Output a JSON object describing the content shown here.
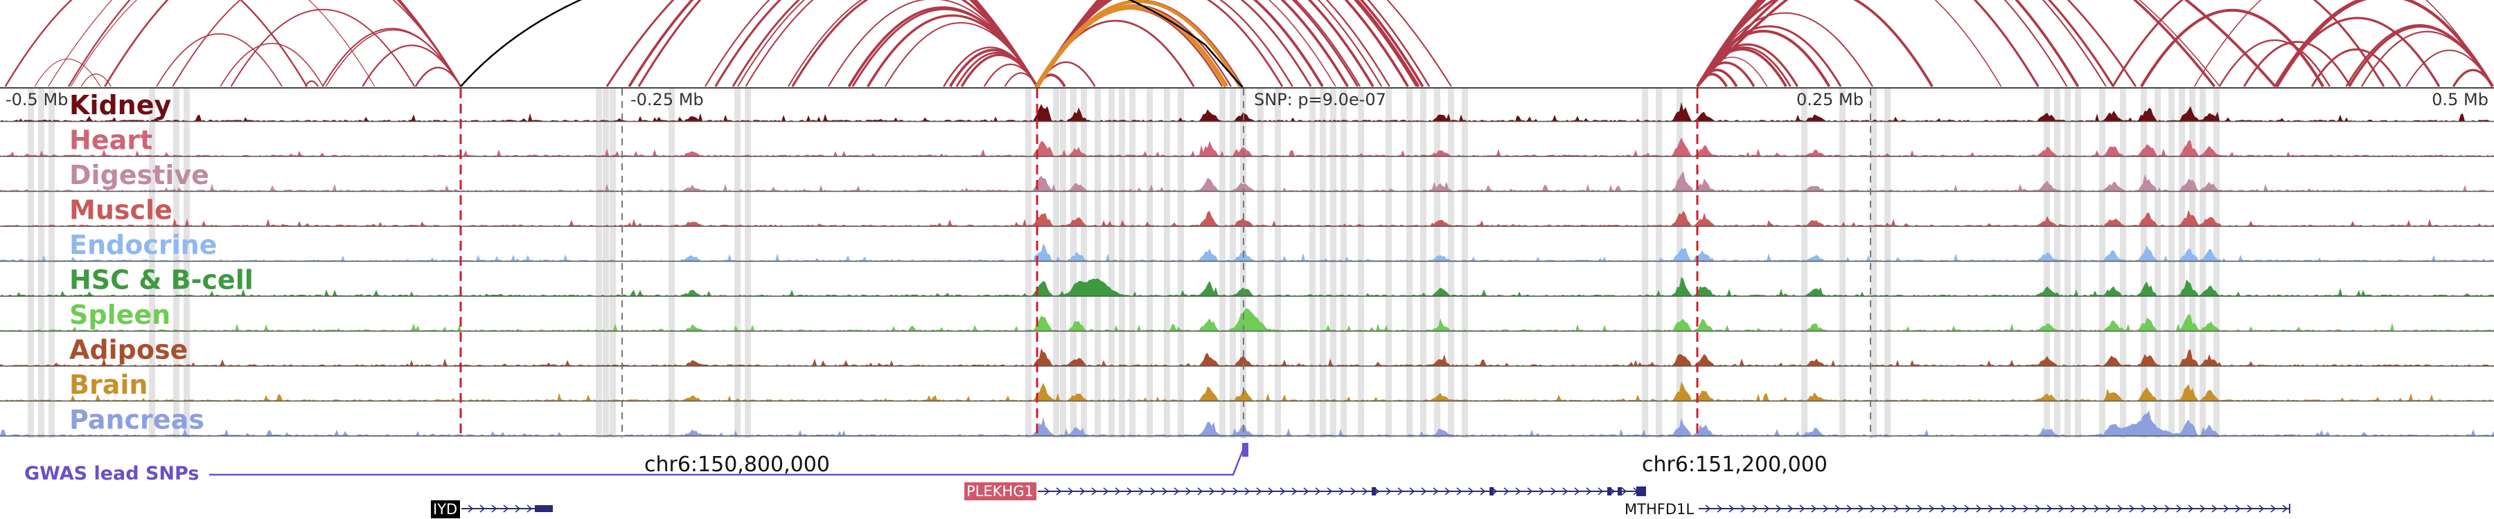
{
  "tracks": [
    {
      "name": "Kidney",
      "color": "#6b0f14"
    },
    {
      "name": "Heart",
      "color": "#d06475"
    },
    {
      "name": "Digestive",
      "color": "#c08aa2"
    },
    {
      "name": "Muscle",
      "color": "#c85a5a"
    },
    {
      "name": "Endocrine",
      "color": "#8fb8f0"
    },
    {
      "name": "HSC & B-cell",
      "color": "#3d9a40"
    },
    {
      "name": "Spleen",
      "color": "#6fcc55"
    },
    {
      "name": "Adipose",
      "color": "#a8502e"
    },
    {
      "name": "Brain",
      "color": "#c8902a"
    },
    {
      "name": "Pancreas",
      "color": "#8ca0e0"
    }
  ],
  "axis_ticks": [
    "-0.5 Mb",
    "-0.25 Mb",
    "0.25 Mb",
    "0.5 Mb"
  ],
  "snp_annotation": "SNP: p=9.0e-07",
  "snp_track_label": "GWAS lead SNPs",
  "snp_color": "#6a4fc8",
  "coordinates": [
    "chr6:150,800,000",
    "chr6:151,200,000"
  ],
  "genes": [
    {
      "name": "IYD",
      "label_bg": "#000000",
      "label_fg": "#ffffff"
    },
    {
      "name": "PLEKHG1",
      "label_bg": "#d0576a",
      "label_fg": "#ffffff"
    },
    {
      "name": "MTHFD1L",
      "label_bg": "",
      "label_fg": "#111111"
    }
  ],
  "colors": {
    "arc": "#b03a48",
    "arc_highlight": "#e08a2a",
    "arc_black": "#000000",
    "divider_dashed": "#cc1f2a",
    "gene_strand": "#2a2a7a",
    "shading": "#d9d9d9"
  }
}
